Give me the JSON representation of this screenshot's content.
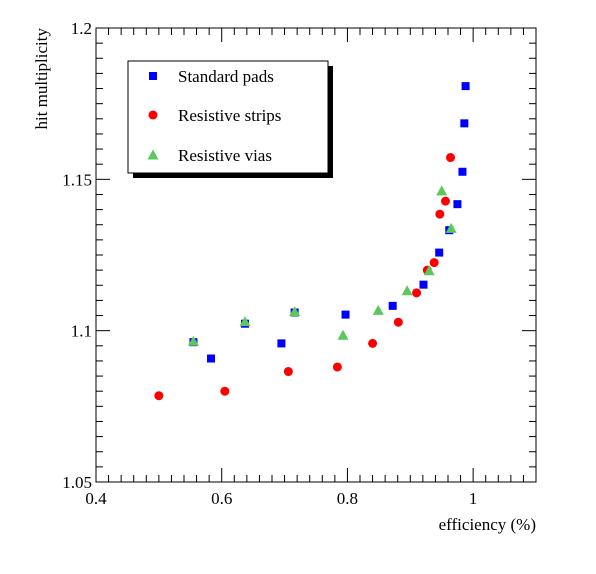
{
  "chart_data": {
    "type": "scatter",
    "xlabel": "efficiency (%)",
    "ylabel": "hit multiplicity",
    "xlim": [
      0.4,
      1.1
    ],
    "ylim": [
      1.05,
      1.2
    ],
    "x_ticks": [
      0.4,
      0.6,
      0.8,
      1.0
    ],
    "x_tick_labels": [
      "0.4",
      "0.6",
      "0.8",
      "1"
    ],
    "y_ticks": [
      1.05,
      1.1,
      1.15,
      1.2
    ],
    "y_tick_labels": [
      "1.05",
      "1.1",
      "1.15",
      "1.2"
    ],
    "grid": false,
    "legend_position": "top-left",
    "series": [
      {
        "name": "Standard pads",
        "marker": "square",
        "color": "#0000ff",
        "x": [
          0.555,
          0.583,
          0.637,
          0.695,
          0.716,
          0.797,
          0.872,
          0.921,
          0.946,
          0.962,
          0.975,
          0.983,
          0.986,
          0.988
        ],
        "y": [
          1.0962,
          1.0908,
          1.1023,
          1.0958,
          1.106,
          1.1053,
          1.1082,
          1.1152,
          1.1258,
          1.1332,
          1.1418,
          1.1525,
          1.1685,
          1.1808
        ]
      },
      {
        "name": "Resistive strips",
        "marker": "circle",
        "color": "#ff0000",
        "x": [
          0.5,
          0.605,
          0.706,
          0.784,
          0.84,
          0.881,
          0.91,
          0.927,
          0.938,
          0.947,
          0.956,
          0.964
        ],
        "y": [
          1.0785,
          1.08,
          1.0865,
          1.088,
          1.0958,
          1.1028,
          1.1125,
          1.12,
          1.1225,
          1.1385,
          1.1428,
          1.1572
        ]
      },
      {
        "name": "Resistive vias",
        "marker": "triangle",
        "color": "#5ac85a",
        "x": [
          0.555,
          0.637,
          0.716,
          0.793,
          0.849,
          0.895,
          0.93,
          0.95,
          0.965
        ],
        "y": [
          1.0965,
          1.103,
          1.1063,
          1.0985,
          1.1067,
          1.1132,
          1.1198,
          1.1462,
          1.1338
        ]
      }
    ]
  }
}
